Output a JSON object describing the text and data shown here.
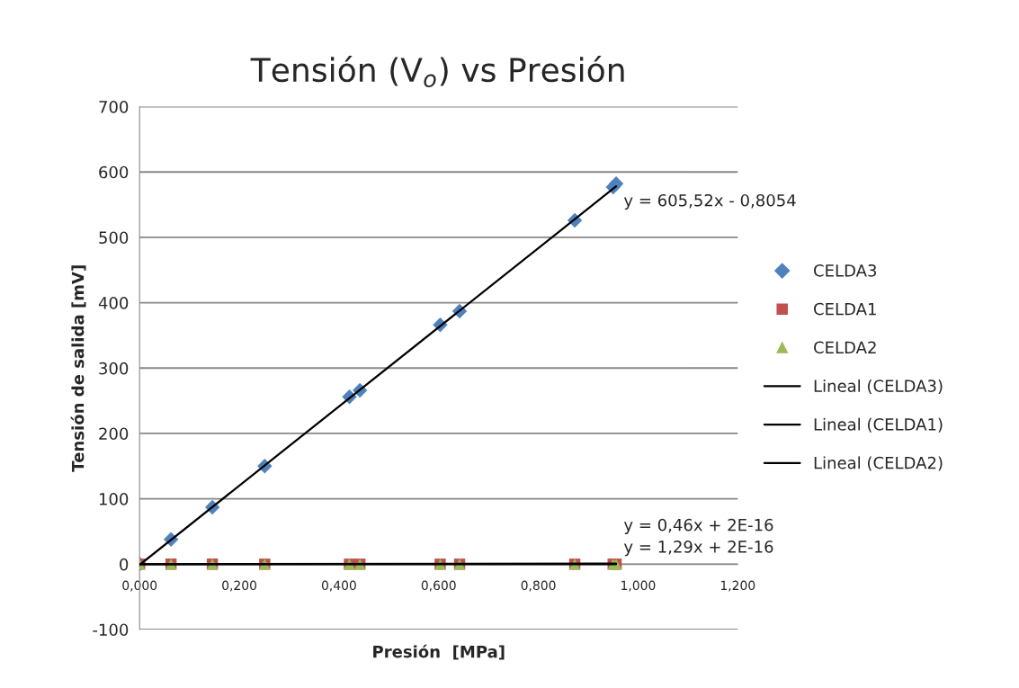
{
  "chart_data": {
    "type": "scatter",
    "title": "Tensión (V$_{o}$) vs Presión",
    "xlabel": "Presión  [MPa]",
    "ylabel": "Tensión de salida [mV]",
    "xlim": [
      0,
      1.2
    ],
    "xticks": [
      {
        "value": 0,
        "label": "0,000"
      },
      {
        "value": 0.2,
        "label": "0,200"
      },
      {
        "value": 0.4,
        "label": "0,400"
      },
      {
        "value": 0.6,
        "label": "0,600"
      },
      {
        "value": 0.8,
        "label": "0,800"
      },
      {
        "value": 1.0,
        "label": "1,000"
      },
      {
        "value": 1.2,
        "label": "1,200"
      }
    ],
    "ylim": [
      -100,
      700
    ],
    "yticks": [
      -100,
      0,
      100,
      200,
      300,
      400,
      500,
      600,
      700
    ],
    "grid": "y",
    "legend": "right",
    "series": [
      {
        "name": "CELDA3",
        "marker": "diamond",
        "color": "#4f81bd",
        "x": [
          0,
          0.063,
          0.146,
          0.251,
          0.421,
          0.442,
          0.603,
          0.642,
          0.873,
          0.95,
          0.956
        ],
        "values": [
          0,
          38,
          87,
          150,
          256,
          266,
          366,
          387,
          526,
          577,
          582
        ]
      },
      {
        "name": "CELDA1",
        "marker": "square",
        "color": "#c0504d",
        "x": [
          0,
          0.063,
          0.146,
          0.251,
          0.421,
          0.442,
          0.603,
          0.642,
          0.873,
          0.95,
          0.956
        ],
        "values": [
          0,
          0,
          0,
          0,
          0,
          0,
          0,
          0,
          0,
          0,
          0
        ]
      },
      {
        "name": "CELDA2",
        "marker": "triangle",
        "color": "#9bbb59",
        "x": [
          0,
          0.063,
          0.146,
          0.251,
          0.421,
          0.442,
          0.603,
          0.642,
          0.873,
          0.95,
          0.956
        ],
        "values": [
          0,
          0,
          0,
          0,
          0,
          0,
          0,
          0,
          0,
          0,
          0
        ]
      },
      {
        "name": "Lineal (CELDA3)",
        "type": "line",
        "line_style": "solid",
        "color": "#000000",
        "x": [
          0,
          0.956
        ],
        "values": [
          -1,
          578
        ]
      },
      {
        "name": "Lineal (CELDA1)",
        "type": "line",
        "line_style": "solid",
        "color": "#000000",
        "x": [
          0,
          0.956
        ],
        "values": [
          0,
          0
        ]
      },
      {
        "name": "Lineal (CELDA2)",
        "type": "line",
        "line_style": "solid",
        "color": "#000000",
        "x": [
          0,
          0.956
        ],
        "values": [
          0,
          1
        ]
      }
    ],
    "annotations": [
      "y = 605,52x - 0,8054",
      "y = 0,46x + 2E-16",
      "y = 1,29x + 2E-16"
    ]
  }
}
